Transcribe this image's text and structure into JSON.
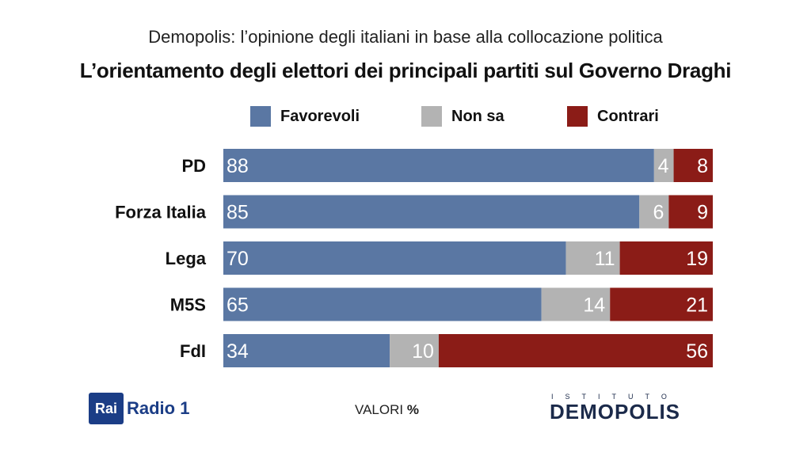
{
  "header": {
    "subtitle": "Demopolis: l’opinione degli italiani in base alla collocazione politica",
    "title": "L’orientamento degli elettori dei principali partiti sul Governo Draghi"
  },
  "legend": [
    {
      "label": "Favorevoli",
      "color": "#5a77a3"
    },
    {
      "label": "Non sa",
      "color": "#b3b3b3"
    },
    {
      "label": "Contrari",
      "color": "#8b1c17"
    }
  ],
  "chart_data": {
    "type": "bar",
    "orientation": "horizontal",
    "stacked": true,
    "categories": [
      "PD",
      "Forza Italia",
      "Lega",
      "M5S",
      "FdI"
    ],
    "series": [
      {
        "name": "Favorevoli",
        "values": [
          88,
          85,
          70,
          65,
          34
        ]
      },
      {
        "name": "Non sa",
        "values": [
          4,
          6,
          11,
          14,
          10
        ]
      },
      {
        "name": "Contrari",
        "values": [
          8,
          9,
          19,
          21,
          56
        ]
      }
    ],
    "xlim": [
      0,
      100
    ],
    "legend_position": "top",
    "grid": false
  },
  "footer": {
    "note_prefix": "VALORI ",
    "note_unit": "%",
    "rai_logo": "Rai",
    "radio_logo": "Radio 1",
    "istituto": "ISTITUTO",
    "demopolis": "DEMOPOLIS"
  }
}
